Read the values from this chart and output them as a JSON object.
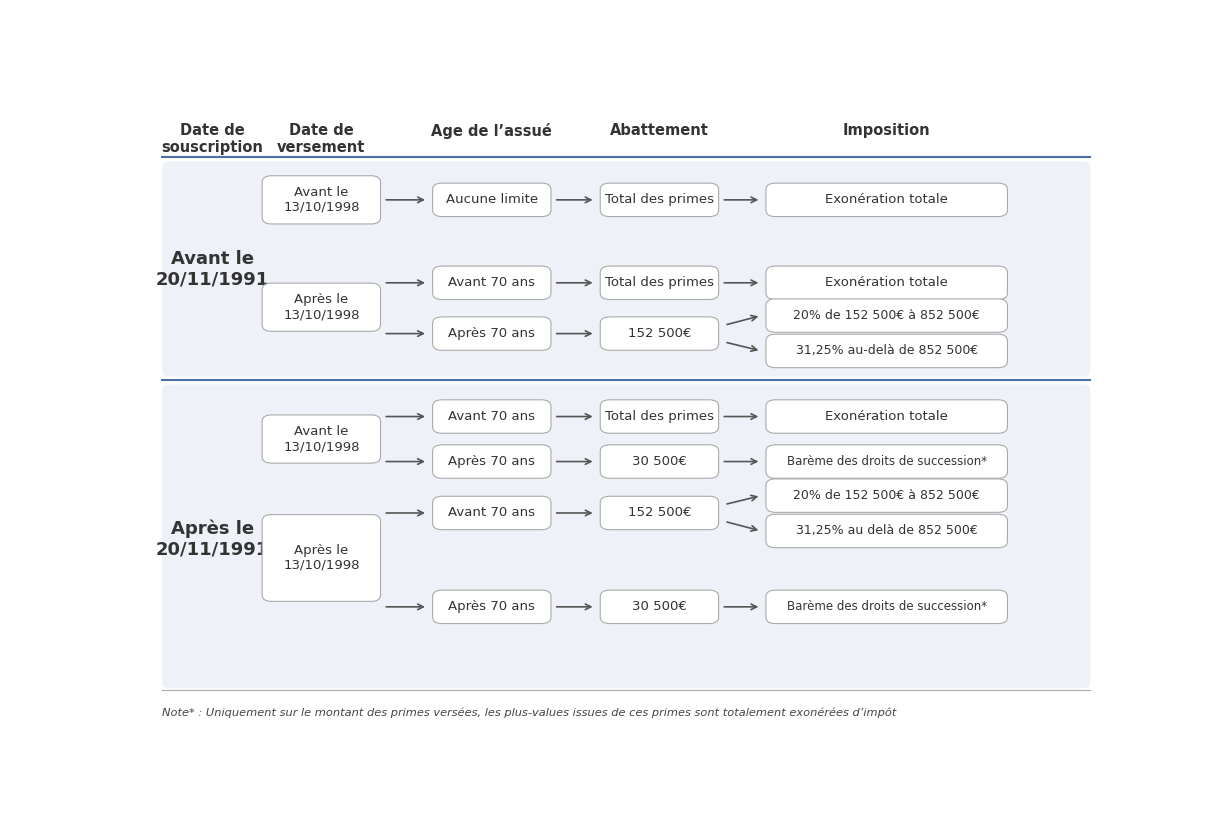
{
  "bg_color": "#EEF2F8",
  "box_color": "#FFFFFF",
  "box_edge_color": "#AAAAAA",
  "arrow_color": "#555555",
  "text_color": "#333333",
  "header_color": "#333333",
  "divider_color": "#4A6FA5",
  "note_color": "#444444",
  "title_row": [
    "Date de\nsouscription",
    "Date de\nversement",
    "Age de l’assué",
    "Abattement",
    "Imposition"
  ],
  "note": "Note* : Uniquement sur le montant des primes versées, les plus-values issues de ces primes sont totalement exonérées d’impôt",
  "section1_label": "Avant le\n20/11/1991",
  "section2_label": "Après le\n20/11/1991",
  "font_size": 9.5,
  "header_font_size": 10.5,
  "section_font_size": 13
}
